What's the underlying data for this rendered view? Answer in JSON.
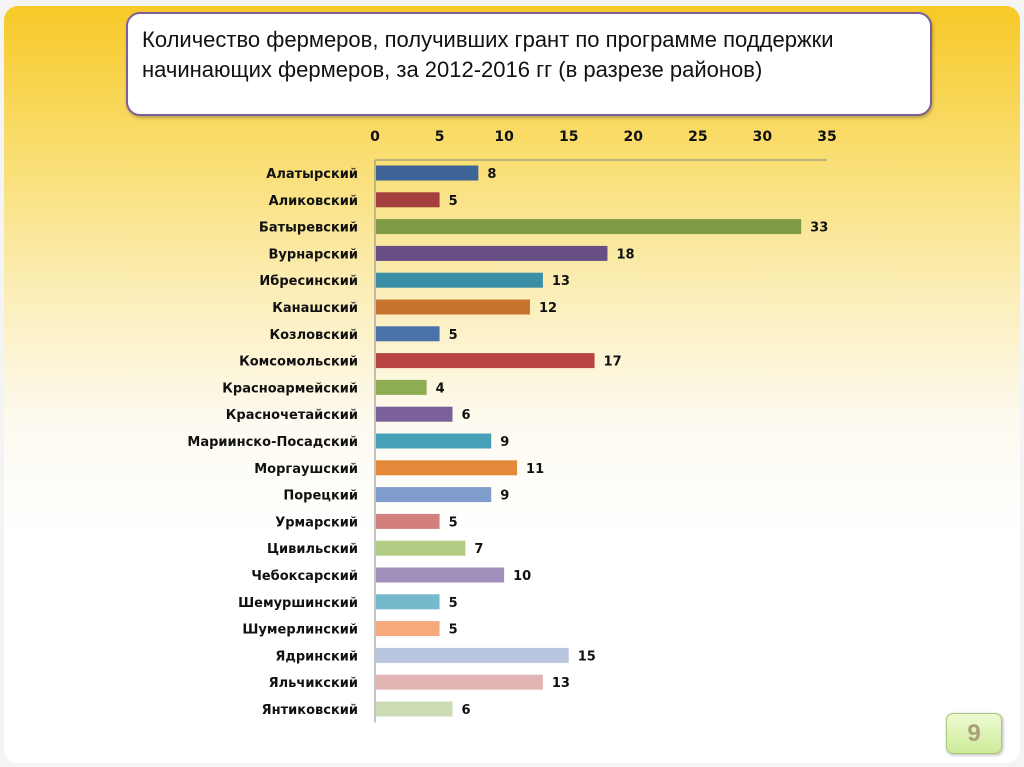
{
  "chart_data": {
    "type": "bar",
    "orientation": "horizontal",
    "title": "Количество фермеров, получивших грант по программе поддержки начинающих фермеров, за 2012-2016 гг (в разрезе районов)",
    "xlabel": "",
    "ylabel": "",
    "xlim": [
      0,
      35
    ],
    "xticks": [
      0,
      5,
      10,
      15,
      20,
      25,
      30,
      35
    ],
    "x_axis_position": "top",
    "grid": false,
    "categories": [
      "Алатырский",
      "Аликовский",
      "Батыревский",
      "Вурнарский",
      "Ибресинский",
      "Канашский",
      "Козловский",
      "Комсомольский",
      "Красноармейский",
      "Красночетайский",
      "Мариинско-Посадский",
      "Моргаушский",
      "Порецкий",
      "Урмарский",
      "Цивильский",
      "Чебоксарский",
      "Шемуршинский",
      "Шумерлинский",
      "Ядринский",
      "Яльчикский",
      "Янтиковский"
    ],
    "values": [
      8,
      5,
      33,
      18,
      13,
      12,
      5,
      17,
      4,
      6,
      9,
      11,
      9,
      5,
      7,
      10,
      5,
      5,
      15,
      13,
      6
    ],
    "colors": [
      "#3f6497",
      "#a33f3c",
      "#7f9a45",
      "#674f86",
      "#3a8fa6",
      "#c8742f",
      "#4a72a8",
      "#b94542",
      "#8eac52",
      "#7a619b",
      "#46a1b8",
      "#e38a3a",
      "#7f9dcc",
      "#d27f7e",
      "#b2cc84",
      "#a08fbb",
      "#76b9cc",
      "#f6a97c",
      "#b8c6e0",
      "#e0b5b4",
      "#ccdcb5"
    ]
  },
  "page": {
    "number": "9"
  }
}
